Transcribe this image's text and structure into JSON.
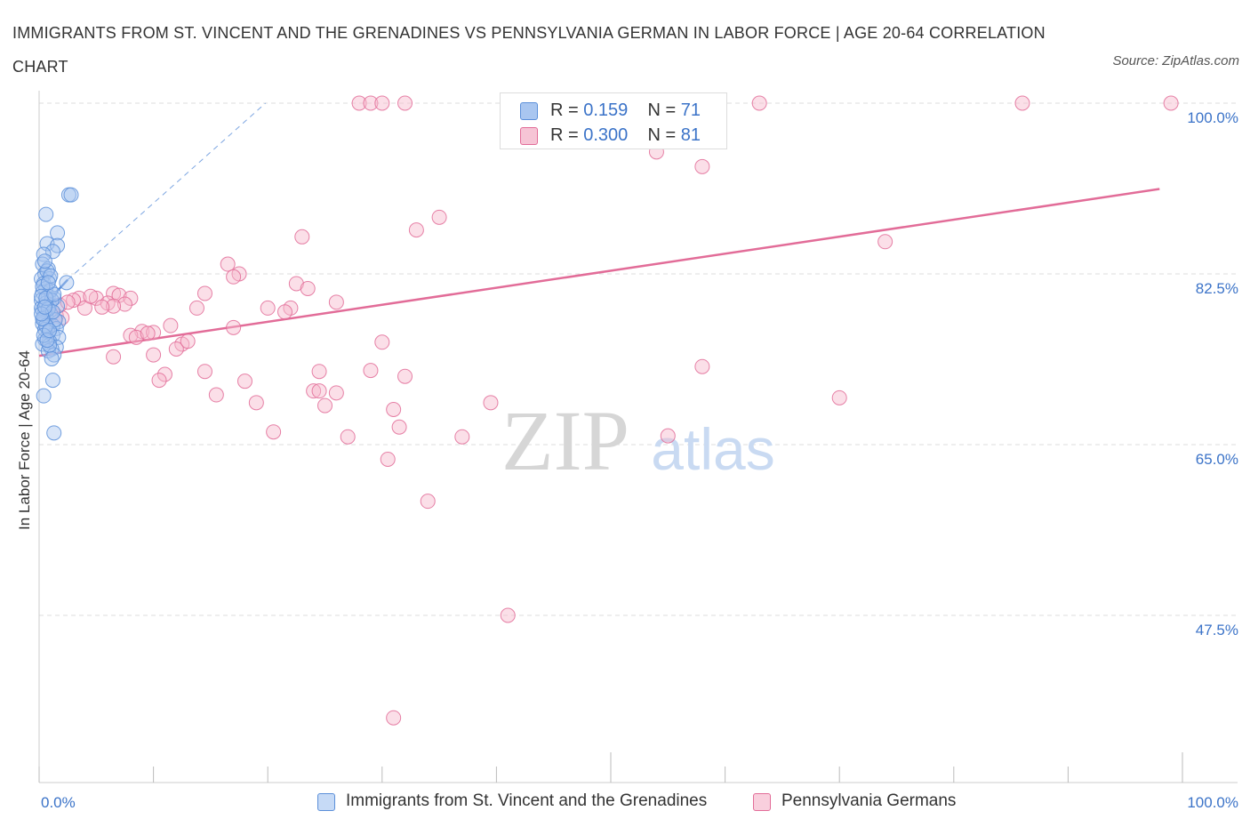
{
  "title": "IMMIGRANTS FROM ST. VINCENT AND THE GRENADINES VS PENNSYLVANIA GERMAN IN LABOR FORCE | AGE 20-64 CORRELATION CHART",
  "source": "Source: ZipAtlas.com",
  "watermark": {
    "zip": "ZIP",
    "atlas": "atlas"
  },
  "colors": {
    "blue": "#5b8fd9",
    "blue_fill": "#a9c6f0",
    "pink": "#e26c98",
    "pink_fill": "#f6b9cd",
    "axis_text": "#3b73c8",
    "grid": "#dddddd"
  },
  "legend": {
    "rows": [
      {
        "r_label": "R = ",
        "r_value": "0.159",
        "n_label": "N = ",
        "n_value": "71"
      },
      {
        "r_label": "R = ",
        "r_value": "0.300",
        "n_label": "N = ",
        "n_value": "81"
      }
    ]
  },
  "bottom_legend": [
    {
      "label": "Immigrants from St. Vincent and the Grenadines"
    },
    {
      "label": "Pennsylvania Germans"
    }
  ],
  "chart_data": {
    "type": "scatter",
    "ylabel": "In Labor Force | Age 20-64",
    "xlim": [
      0,
      100
    ],
    "ylim": [
      30,
      101.5
    ],
    "y_ticks": [
      47.5,
      65.0,
      82.5,
      100.0
    ],
    "y_tick_labels": [
      "47.5%",
      "65.0%",
      "82.5%",
      "100.0%"
    ],
    "x_tick_labels": [
      "0.0%",
      "100.0%"
    ],
    "legend_position": "top-center",
    "grid": true,
    "series": [
      {
        "name": "Immigrants from St. Vincent and the Grenadines",
        "color": "#5b8fd9",
        "points": [
          [
            0.6,
            88.6
          ],
          [
            2.6,
            90.6
          ],
          [
            2.8,
            90.6
          ],
          [
            1.6,
            86.7
          ],
          [
            0.7,
            85.6
          ],
          [
            1.6,
            85.4
          ],
          [
            1.2,
            84.8
          ],
          [
            0.4,
            84.5
          ],
          [
            0.3,
            83.5
          ],
          [
            0.8,
            83.0
          ],
          [
            0.5,
            82.5
          ],
          [
            0.9,
            82.0
          ],
          [
            0.2,
            82.0
          ],
          [
            0.4,
            81.5
          ],
          [
            0.6,
            81.0
          ],
          [
            2.4,
            81.6
          ],
          [
            0.3,
            80.6
          ],
          [
            0.8,
            80.2
          ],
          [
            1.3,
            80.0
          ],
          [
            0.2,
            79.8
          ],
          [
            0.9,
            79.3
          ],
          [
            1.6,
            79.2
          ],
          [
            0.3,
            78.8
          ],
          [
            0.5,
            78.6
          ],
          [
            1.0,
            78.4
          ],
          [
            0.6,
            78.1
          ],
          [
            0.4,
            77.8
          ],
          [
            1.7,
            77.6
          ],
          [
            0.3,
            77.4
          ],
          [
            1.2,
            77.2
          ],
          [
            0.7,
            77.0
          ],
          [
            1.5,
            76.9
          ],
          [
            0.8,
            76.5
          ],
          [
            1.2,
            76.2
          ],
          [
            1.7,
            76.0
          ],
          [
            0.5,
            75.8
          ],
          [
            0.9,
            75.6
          ],
          [
            0.3,
            75.3
          ],
          [
            1.5,
            75.0
          ],
          [
            1.1,
            74.8
          ],
          [
            0.8,
            74.6
          ],
          [
            1.3,
            74.2
          ],
          [
            1.1,
            73.8
          ],
          [
            1.2,
            71.6
          ],
          [
            0.4,
            70.0
          ],
          [
            1.3,
            66.2
          ],
          [
            0.2,
            79.0
          ],
          [
            0.6,
            79.5
          ],
          [
            1.0,
            80.8
          ],
          [
            0.4,
            78.0
          ],
          [
            0.7,
            82.8
          ],
          [
            1.4,
            77.8
          ],
          [
            0.5,
            76.8
          ],
          [
            0.9,
            75.2
          ],
          [
            0.3,
            81.2
          ],
          [
            1.1,
            79.8
          ],
          [
            0.6,
            77.2
          ],
          [
            0.8,
            78.9
          ],
          [
            0.2,
            80.2
          ],
          [
            1.2,
            78.6
          ],
          [
            0.4,
            76.2
          ],
          [
            0.7,
            75.7
          ],
          [
            1.0,
            82.3
          ],
          [
            0.5,
            83.8
          ],
          [
            0.3,
            77.9
          ],
          [
            0.9,
            76.7
          ],
          [
            0.6,
            80.0
          ],
          [
            1.3,
            80.4
          ],
          [
            0.2,
            78.4
          ],
          [
            0.8,
            81.6
          ],
          [
            0.5,
            79.1
          ]
        ],
        "trend": {
          "x": [
            0.2,
            2.5
          ],
          "y": [
            79.0,
            81.9
          ]
        },
        "trend_extended": {
          "x": [
            2.5,
            19.8
          ],
          "y": [
            81.9,
            100.0
          ]
        }
      },
      {
        "name": "Pennsylvania Germans",
        "color": "#e26c98",
        "points": [
          [
            28.0,
            100.0
          ],
          [
            29.0,
            100.0
          ],
          [
            30.0,
            100.0
          ],
          [
            32.0,
            100.0
          ],
          [
            46.0,
            100.0
          ],
          [
            50.0,
            100.0
          ],
          [
            63.0,
            100.0
          ],
          [
            86.0,
            100.0
          ],
          [
            99.0,
            100.0
          ],
          [
            54.0,
            95.0
          ],
          [
            58.0,
            93.5
          ],
          [
            35.0,
            88.3
          ],
          [
            33.0,
            87.0
          ],
          [
            23.0,
            86.3
          ],
          [
            74.0,
            85.8
          ],
          [
            16.5,
            83.5
          ],
          [
            17.5,
            82.5
          ],
          [
            17.0,
            82.2
          ],
          [
            22.5,
            81.5
          ],
          [
            14.5,
            80.5
          ],
          [
            6.5,
            80.5
          ],
          [
            7.0,
            80.3
          ],
          [
            5.0,
            80.0
          ],
          [
            3.5,
            80.0
          ],
          [
            8.0,
            80.0
          ],
          [
            3.0,
            79.8
          ],
          [
            26.0,
            79.6
          ],
          [
            20.0,
            79.0
          ],
          [
            22.0,
            79.0
          ],
          [
            6.0,
            79.5
          ],
          [
            7.5,
            79.4
          ],
          [
            4.0,
            79.0
          ],
          [
            6.5,
            79.2
          ],
          [
            13.8,
            79.0
          ],
          [
            21.5,
            78.6
          ],
          [
            1.5,
            78.2
          ],
          [
            2.0,
            78.0
          ],
          [
            1.8,
            79.3
          ],
          [
            11.5,
            77.2
          ],
          [
            17.0,
            77.0
          ],
          [
            9.0,
            76.6
          ],
          [
            8.0,
            76.2
          ],
          [
            10.0,
            76.5
          ],
          [
            8.5,
            76.0
          ],
          [
            30.0,
            75.5
          ],
          [
            12.5,
            75.3
          ],
          [
            12.0,
            74.8
          ],
          [
            10.0,
            74.2
          ],
          [
            6.5,
            74.0
          ],
          [
            14.5,
            72.5
          ],
          [
            24.5,
            72.5
          ],
          [
            29.0,
            72.6
          ],
          [
            32.0,
            72.0
          ],
          [
            11.0,
            72.2
          ],
          [
            18.0,
            71.5
          ],
          [
            10.5,
            71.6
          ],
          [
            58.0,
            73.0
          ],
          [
            24.0,
            70.5
          ],
          [
            24.5,
            70.5
          ],
          [
            26.0,
            70.3
          ],
          [
            15.5,
            70.1
          ],
          [
            39.5,
            69.3
          ],
          [
            70.0,
            69.8
          ],
          [
            19.0,
            69.3
          ],
          [
            25.0,
            69.0
          ],
          [
            31.0,
            68.6
          ],
          [
            31.5,
            66.8
          ],
          [
            20.5,
            66.3
          ],
          [
            27.0,
            65.8
          ],
          [
            37.0,
            65.8
          ],
          [
            55.0,
            65.9
          ],
          [
            30.5,
            63.5
          ],
          [
            34.0,
            59.2
          ],
          [
            41.0,
            47.5
          ],
          [
            31.0,
            37.0
          ],
          [
            4.5,
            80.2
          ],
          [
            9.5,
            76.4
          ],
          [
            13.0,
            75.6
          ],
          [
            23.5,
            81.0
          ],
          [
            5.5,
            79.1
          ],
          [
            2.5,
            79.6
          ]
        ],
        "trend": {
          "x": [
            0,
            98
          ],
          "y": [
            74.1,
            91.2
          ]
        }
      }
    ]
  }
}
